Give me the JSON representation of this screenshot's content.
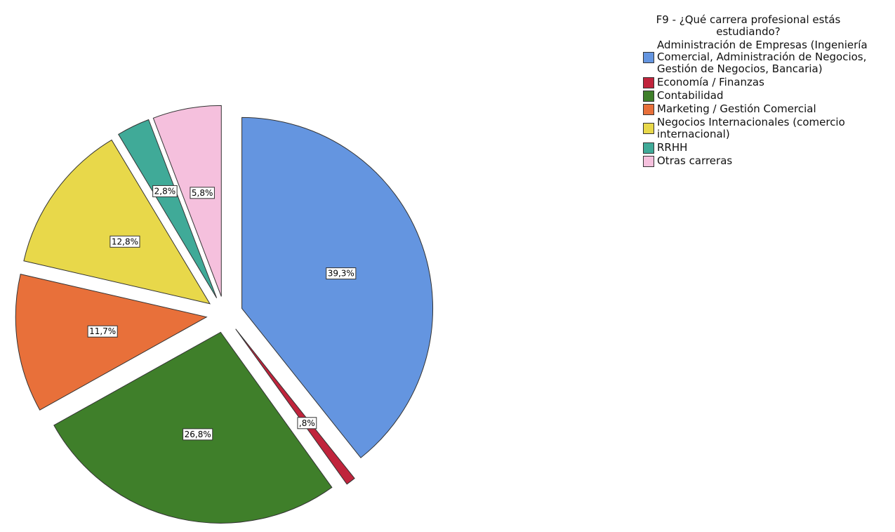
{
  "chart_data": {
    "type": "pie",
    "legend_title": "F9 - ¿Qué carrera profesional estás estudiando?",
    "legend": "right",
    "categories": [
      "Administración de Empresas (Ingeniería Comercial, Administración de Negocios, Gestión de Negocios, Bancaria)",
      "Economía / Finanzas",
      "Contabilidad",
      "Marketing / Gestión Comercial",
      "Negocios Internacionales (comercio internacional)",
      "RRHH",
      "Otras carreras"
    ],
    "values": [
      39.3,
      0.8,
      26.8,
      11.7,
      12.8,
      2.8,
      5.8
    ],
    "value_labels": [
      "39,3%",
      ",8%",
      "26,8%",
      "11,7%",
      "12,8%",
      "2,8%",
      "5,8%"
    ],
    "colors": [
      "#6495e0",
      "#c0243c",
      "#3f7f2a",
      "#e8703a",
      "#e8d84a",
      "#40aa98",
      "#f5c0dd"
    ]
  }
}
